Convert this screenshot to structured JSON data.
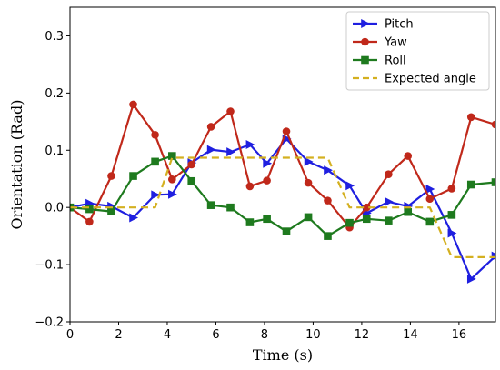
{
  "chart_data": {
    "type": "line",
    "title": "",
    "xlabel": "Time (s)",
    "ylabel": "Orientation (Rad)",
    "xlim": [
      0,
      17.5
    ],
    "ylim": [
      -0.2,
      0.35
    ],
    "xticks": [
      0,
      2,
      4,
      6,
      8,
      10,
      12,
      14,
      16
    ],
    "xtick_labels": [
      "0",
      "2",
      "4",
      "6",
      "8",
      "10",
      "12",
      "14",
      "16"
    ],
    "yticks": [
      -0.2,
      -0.1,
      0.0,
      0.1,
      0.2,
      0.3
    ],
    "ytick_labels": [
      "−0.2",
      "−0.1",
      "0.0",
      "0.1",
      "0.2",
      "0.3"
    ],
    "grid": false,
    "legend_position": "top-right",
    "series": [
      {
        "name": "Pitch",
        "color": "#1f1fe0",
        "marker": "triangle-right",
        "linestyle": "solid",
        "x": [
          0.0,
          0.8,
          1.7,
          2.6,
          3.5,
          4.2,
          5.0,
          5.8,
          6.6,
          7.4,
          8.1,
          8.9,
          9.8,
          10.6,
          11.5,
          12.2,
          13.1,
          13.9,
          14.8,
          15.7,
          16.5,
          17.5
        ],
        "y": [
          0.0,
          0.007,
          0.002,
          -0.018,
          0.022,
          0.023,
          0.078,
          0.101,
          0.097,
          0.11,
          0.077,
          0.12,
          0.08,
          0.065,
          0.038,
          -0.01,
          0.01,
          0.002,
          0.032,
          -0.045,
          -0.125,
          -0.085
        ]
      },
      {
        "name": "Yaw",
        "color": "#c0281a",
        "marker": "circle",
        "linestyle": "solid",
        "x": [
          0.0,
          0.8,
          1.7,
          2.6,
          3.5,
          4.2,
          5.0,
          5.8,
          6.6,
          7.4,
          8.1,
          8.9,
          9.8,
          10.6,
          11.5,
          12.2,
          13.1,
          13.9,
          14.8,
          15.7,
          16.5,
          17.5
        ],
        "y": [
          0.0,
          -0.025,
          0.055,
          0.18,
          0.127,
          0.049,
          0.075,
          0.141,
          0.168,
          0.037,
          0.047,
          0.133,
          0.043,
          0.012,
          -0.035,
          0.0,
          0.058,
          0.09,
          0.015,
          0.033,
          0.158,
          0.145
        ]
      },
      {
        "name": "Roll",
        "color": "#1e7a1e",
        "marker": "square",
        "linestyle": "solid",
        "x": [
          0.0,
          0.8,
          1.7,
          2.6,
          3.5,
          4.2,
          5.0,
          5.8,
          6.6,
          7.4,
          8.1,
          8.9,
          9.8,
          10.6,
          11.5,
          12.2,
          13.1,
          13.9,
          14.8,
          15.7,
          16.5,
          17.5
        ],
        "y": [
          0.0,
          -0.003,
          -0.007,
          0.055,
          0.08,
          0.09,
          0.046,
          0.004,
          0.0,
          -0.026,
          -0.02,
          -0.042,
          -0.017,
          -0.05,
          -0.027,
          -0.02,
          -0.023,
          -0.008,
          -0.025,
          -0.013,
          0.04,
          0.044
        ]
      },
      {
        "name": "Expected angle",
        "color": "#d4b020",
        "marker": "none",
        "linestyle": "dashed",
        "x": [
          0.0,
          3.5,
          4.2,
          10.6,
          11.5,
          14.8,
          15.7,
          17.5
        ],
        "y": [
          0.0,
          0.0,
          0.087,
          0.087,
          0.0,
          0.0,
          -0.087,
          -0.087
        ]
      }
    ]
  }
}
